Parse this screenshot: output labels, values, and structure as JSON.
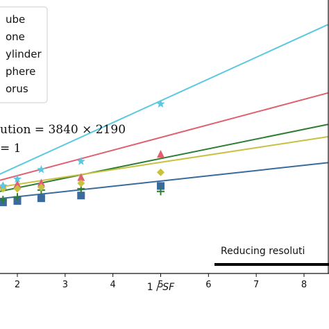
{
  "chart_data": {
    "type": "scatter",
    "xlabel": "1 / SF",
    "xlim": [
      0.65,
      8.5
    ],
    "ylim": [
      0,
      1
    ],
    "x_ticks": [
      "2",
      "3",
      "4",
      "5",
      "6",
      "7",
      "8"
    ],
    "grid": false,
    "legend_position": "top-left",
    "annotation_lines": [
      "ution = 3840 × 2190",
      "= 1"
    ],
    "arrow_label": "Reducing resoluti",
    "series": [
      {
        "name": "ube",
        "color": "#3a6b9c",
        "marker": "square",
        "points": [
          [
            1.7,
            0.26
          ],
          [
            2.0,
            0.265
          ],
          [
            2.5,
            0.275
          ],
          [
            3.3333,
            0.285
          ],
          [
            5.0,
            0.32
          ]
        ],
        "fit": [
          [
            0.65,
            0.255
          ],
          [
            8.5,
            0.405
          ]
        ]
      },
      {
        "name": "one",
        "color": "#e06070",
        "marker": "triangle",
        "points": [
          [
            1.7,
            0.32
          ],
          [
            2.0,
            0.325
          ],
          [
            2.5,
            0.33
          ],
          [
            3.3333,
            0.35
          ],
          [
            5.0,
            0.435
          ]
        ],
        "fit": [
          [
            0.65,
            0.295
          ],
          [
            8.5,
            0.66
          ]
        ]
      },
      {
        "name": "ylinder",
        "color": "#2e7d32",
        "marker": "plus",
        "points": [
          [
            1.7,
            0.27
          ],
          [
            2.0,
            0.28
          ],
          [
            2.5,
            0.305
          ],
          [
            3.3333,
            0.31
          ],
          [
            5.0,
            0.3
          ]
        ],
        "fit": [
          [
            0.65,
            0.265
          ],
          [
            8.5,
            0.545
          ]
        ]
      },
      {
        "name": "phere",
        "color": "#c8c040",
        "marker": "diamond",
        "points": [
          [
            1.7,
            0.31
          ],
          [
            2.0,
            0.31
          ],
          [
            2.5,
            0.315
          ],
          [
            3.3333,
            0.33
          ],
          [
            5.0,
            0.37
          ]
        ],
        "fit": [
          [
            0.65,
            0.29
          ],
          [
            8.5,
            0.5
          ]
        ]
      },
      {
        "name": "orus",
        "color": "#5bc8e0",
        "marker": "star",
        "points": [
          [
            1.7,
            0.32
          ],
          [
            2.0,
            0.345
          ],
          [
            2.5,
            0.38
          ],
          [
            3.3333,
            0.41
          ],
          [
            5.0,
            0.62
          ]
        ],
        "fit": [
          [
            0.65,
            0.285
          ],
          [
            8.5,
            0.91
          ]
        ]
      }
    ]
  }
}
